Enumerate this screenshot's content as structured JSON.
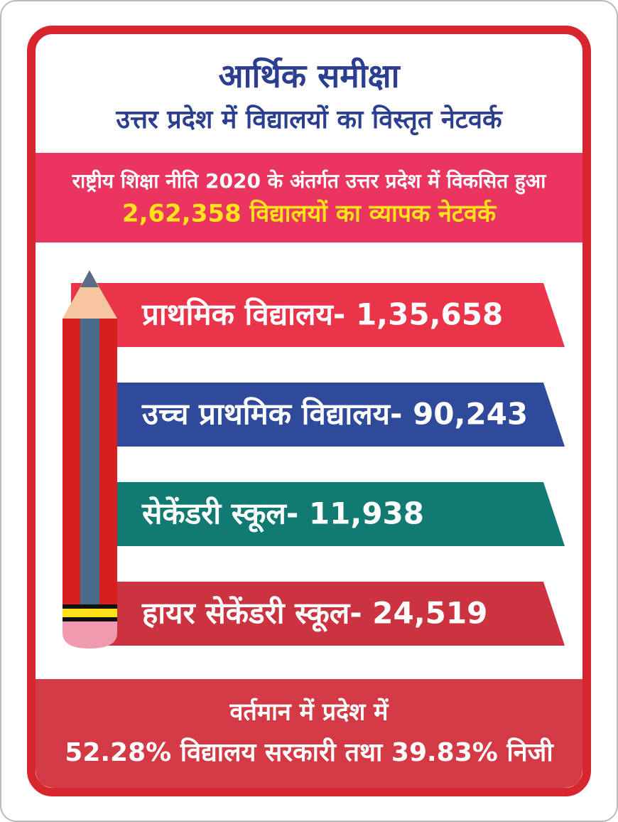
{
  "header": {
    "title": "आर्थिक समीक्षा",
    "subtitle": "उत्तर प्रदेश में विद्यालयों का विस्तृत नेटवर्क"
  },
  "banner": {
    "line1": "राष्ट्रीय शिक्षा नीति 2020 के अंतर्गत उत्तर प्रदेश में विकसित हुआ",
    "line2": "2,62,358 विद्यालयों का व्यापक नेटवर्क"
  },
  "items": [
    "प्राथमिक विद्यालय- 1,35,658",
    "उच्च प्राथमिक विद्यालय- 90,243",
    "सेकेंडरी स्कूल- 11,938",
    "हायर सेकेंडरी स्कूल- 24,519"
  ],
  "footer": {
    "line1": "वर्तमान में प्रदेश में",
    "line2": "52.28% विद्यालय सरकारी तथा 39.83% निजी"
  }
}
